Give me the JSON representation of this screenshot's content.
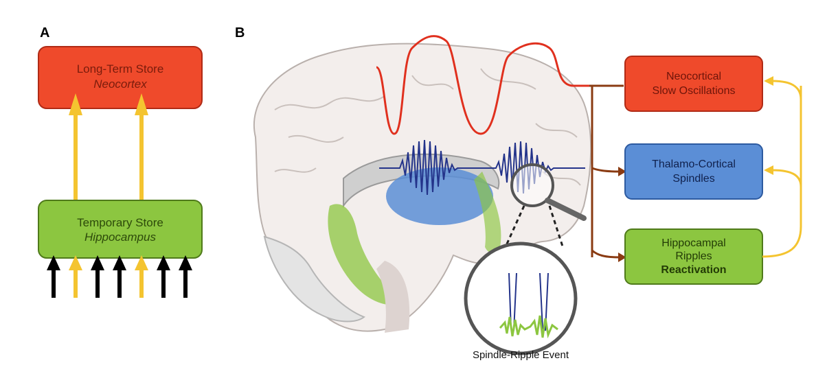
{
  "panel_a": {
    "label": "A",
    "long_term": {
      "line1": "Long-Term Store",
      "line2": "Neocortex"
    },
    "temporary": {
      "line1": "Temporary Store",
      "line2": "Hippocampus"
    }
  },
  "panel_b": {
    "label": "B",
    "boxes": {
      "slow_osc": {
        "line1": "Neocortical",
        "line2": "Slow Oscillations"
      },
      "spindles": {
        "line1": "Thalamo-Cortical",
        "line2": "Spindles"
      },
      "ripples": {
        "line1": "Hippocampal",
        "line2": "Ripples",
        "line3": "Reactivation"
      }
    },
    "magnifier_caption": "Spindle-Ripple Event"
  },
  "colors": {
    "red_box": "#ef4a2b",
    "green_box": "#8cc640",
    "blue_box": "#5b8ed6",
    "yellow_arrow": "#f4c430",
    "brown_arrow": "#8a3b12",
    "slow_wave": "#e0301e",
    "spindle_wave": "#23338a"
  }
}
